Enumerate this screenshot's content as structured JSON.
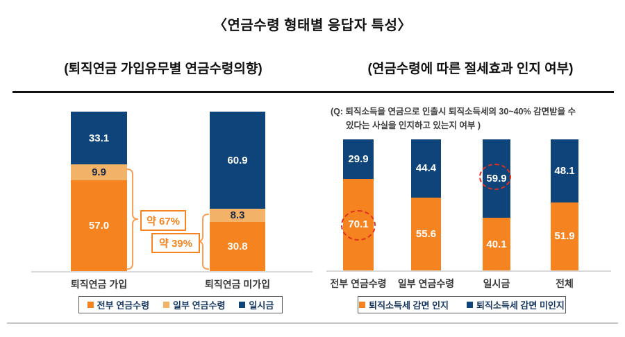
{
  "page": {
    "title": "〈연금수령 형태별 응답자 특성〉"
  },
  "colors": {
    "orange": "#f5831f",
    "light_orange": "#f2b267",
    "navy": "#0e4479",
    "highlight_red": "#e0301e",
    "callout_orange": "#f5831f"
  },
  "chart_data": [
    {
      "type": "bar",
      "stacked": true,
      "title": "(퇴직연금 가입유무별 연금수령의향)",
      "categories": [
        "퇴직연금 가입",
        "퇴직연금 미가입"
      ],
      "series": [
        {
          "name": "전부 연금수령",
          "color": "#f5831f",
          "label_color": "#ffffff",
          "values": [
            57.0,
            30.8
          ]
        },
        {
          "name": "일부 연금수령",
          "color": "#f2b267",
          "label_color": "#1b2a45",
          "values": [
            9.9,
            8.3
          ]
        },
        {
          "name": "일시금",
          "color": "#0e4479",
          "label_color": "#ffffff",
          "values": [
            33.1,
            60.9
          ]
        }
      ],
      "ylim": [
        0,
        100
      ],
      "grid": false,
      "legend_position": "bottom",
      "annotations": [
        {
          "type": "callout-bracket",
          "text": "약 67%",
          "target_category": "퇴직연금 가입",
          "covers": [
            "전부 연금수령",
            "일부 연금수령"
          ]
        },
        {
          "type": "callout-bracket",
          "text": "약 39%",
          "target_category": "퇴직연금 미가입",
          "covers": [
            "전부 연금수령",
            "일부 연금수령"
          ]
        }
      ]
    },
    {
      "type": "bar",
      "stacked": true,
      "title": "(연금수령에 따른 절세효과 인지 여부)",
      "note": {
        "line1": "(Q: 퇴직소득을 연금으로 인출시 퇴직소득세의 30~40% 감면받을 수",
        "line2": "있다는 사실을 인지하고 있는지 여부 )"
      },
      "categories": [
        "전부 연금수령",
        "일부 연금수령",
        "일시금",
        "전체"
      ],
      "series": [
        {
          "name": "퇴직소득세 감면 인지",
          "color": "#f5831f",
          "label_color": "#ffffff",
          "values": [
            70.1,
            55.6,
            40.1,
            51.9
          ]
        },
        {
          "name": "퇴직소득세 감면 미인지",
          "color": "#0e4479",
          "label_color": "#ffffff",
          "values": [
            29.9,
            44.4,
            59.9,
            48.1
          ]
        }
      ],
      "ylim": [
        0,
        100
      ],
      "grid": false,
      "legend_position": "bottom",
      "annotations": [
        {
          "type": "circle",
          "value": 70.1,
          "target_category": "전부 연금수령",
          "series": "퇴직소득세 감면 인지"
        },
        {
          "type": "circle",
          "value": 59.9,
          "target_category": "일시금",
          "series": "퇴직소득세 감면 미인지"
        }
      ]
    }
  ]
}
